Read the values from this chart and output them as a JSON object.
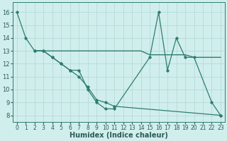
{
  "line1_x": [
    0,
    1,
    2,
    3,
    4,
    5,
    6,
    7,
    8,
    9,
    10,
    11,
    15,
    16,
    17,
    18,
    19,
    20,
    22,
    23
  ],
  "line1_y": [
    16,
    14,
    13,
    13,
    12.5,
    12,
    11.5,
    11.5,
    10.0,
    9.0,
    8.5,
    8.5,
    12.5,
    16,
    11.5,
    14,
    12.5,
    12.5,
    9,
    8
  ],
  "line2_x": [
    2,
    3,
    4,
    5,
    6,
    7,
    8,
    9,
    10,
    11,
    12,
    13,
    14,
    15,
    16,
    17,
    18,
    19,
    20,
    21,
    22,
    23
  ],
  "line2_y": [
    13,
    13,
    13,
    13,
    13,
    13,
    13,
    13,
    13,
    13,
    13,
    13,
    13,
    12.7,
    12.7,
    12.7,
    12.7,
    12.7,
    12.5,
    12.5,
    12.5,
    12.5
  ],
  "line3_x": [
    2,
    3,
    4,
    5,
    6,
    7,
    8,
    9,
    10,
    11,
    23
  ],
  "line3_y": [
    13,
    13,
    12.5,
    12,
    11.5,
    11.0,
    10.2,
    9.2,
    9.0,
    8.7,
    8
  ],
  "xlim": [
    -0.5,
    23.5
  ],
  "ylim": [
    7.5,
    16.8
  ],
  "yticks": [
    8,
    9,
    10,
    11,
    12,
    13,
    14,
    15,
    16
  ],
  "xtick_labels": [
    "0",
    "1",
    "2",
    "3",
    "4",
    "5",
    "6",
    "7",
    "8",
    "9",
    "10",
    "11",
    "12",
    "13",
    "14",
    "15",
    "16",
    "17",
    "18",
    "19",
    "20",
    "21",
    "22",
    "23"
  ],
  "xlabel": "Humidex (Indice chaleur)",
  "bg_color": "#d0eeec",
  "grid_color": "#b0d8d5",
  "line_color": "#2e7d6e",
  "tick_color": "#2e5a55",
  "tick_fontsize": 5.5,
  "xlabel_fontsize": 7.0
}
